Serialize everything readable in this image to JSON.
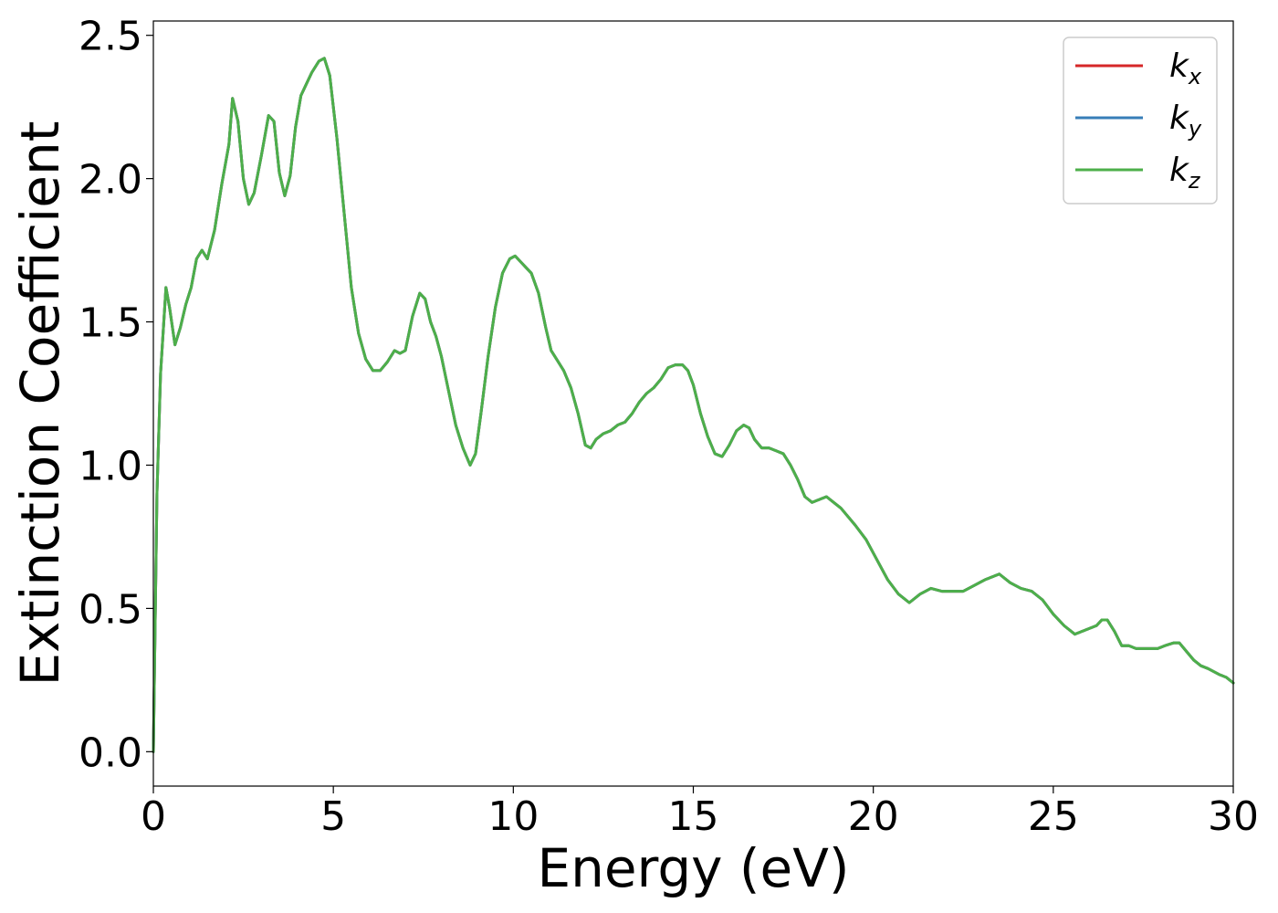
{
  "chart_data": {
    "type": "line",
    "xlabel": "Energy (eV)",
    "ylabel": "Extinction Coefficient",
    "xlim": [
      0,
      30
    ],
    "ylim": [
      -0.12,
      2.55
    ],
    "xticks": [
      "0",
      "5",
      "10",
      "15",
      "20",
      "25",
      "30"
    ],
    "yticks": [
      "0.0",
      "0.5",
      "1.0",
      "1.5",
      "2.0",
      "2.5"
    ],
    "grid": false,
    "legend_position": "top-right",
    "x": [
      0.0,
      0.1,
      0.2,
      0.35,
      0.45,
      0.6,
      0.75,
      0.9,
      1.05,
      1.2,
      1.35,
      1.5,
      1.7,
      1.9,
      2.1,
      2.2,
      2.35,
      2.5,
      2.65,
      2.8,
      3.0,
      3.2,
      3.35,
      3.5,
      3.65,
      3.8,
      3.95,
      4.1,
      4.25,
      4.4,
      4.6,
      4.75,
      4.9,
      5.1,
      5.3,
      5.5,
      5.7,
      5.9,
      6.1,
      6.3,
      6.5,
      6.7,
      6.85,
      7.0,
      7.2,
      7.4,
      7.55,
      7.7,
      7.85,
      8.0,
      8.2,
      8.4,
      8.6,
      8.8,
      8.95,
      9.1,
      9.3,
      9.5,
      9.7,
      9.9,
      10.05,
      10.2,
      10.35,
      10.5,
      10.7,
      10.9,
      11.05,
      11.2,
      11.4,
      11.6,
      11.8,
      12.0,
      12.15,
      12.3,
      12.5,
      12.7,
      12.9,
      13.1,
      13.3,
      13.5,
      13.7,
      13.9,
      14.1,
      14.3,
      14.5,
      14.7,
      14.85,
      15.0,
      15.2,
      15.4,
      15.6,
      15.8,
      16.0,
      16.2,
      16.4,
      16.55,
      16.7,
      16.9,
      17.1,
      17.3,
      17.5,
      17.7,
      17.9,
      18.1,
      18.3,
      18.5,
      18.7,
      18.9,
      19.1,
      19.3,
      19.5,
      19.8,
      20.1,
      20.4,
      20.7,
      21.0,
      21.1,
      21.3,
      21.6,
      21.9,
      22.2,
      22.5,
      22.8,
      23.1,
      23.5,
      23.8,
      24.1,
      24.4,
      24.7,
      25.0,
      25.3,
      25.6,
      25.8,
      26.0,
      26.2,
      26.35,
      26.5,
      26.7,
      26.9,
      27.1,
      27.3,
      27.6,
      27.9,
      28.1,
      28.35,
      28.5,
      28.7,
      28.9,
      29.1,
      29.3,
      29.6,
      29.8,
      30.0
    ],
    "series": [
      {
        "name": "k_x",
        "color": "#d62728",
        "values": [
          0.0,
          0.9,
          1.32,
          1.62,
          1.55,
          1.42,
          1.48,
          1.56,
          1.62,
          1.72,
          1.75,
          1.72,
          1.82,
          1.98,
          2.12,
          2.28,
          2.2,
          2.0,
          1.91,
          1.95,
          2.08,
          2.22,
          2.2,
          2.02,
          1.94,
          2.01,
          2.18,
          2.29,
          2.33,
          2.37,
          2.41,
          2.42,
          2.36,
          2.14,
          1.88,
          1.62,
          1.46,
          1.37,
          1.33,
          1.33,
          1.36,
          1.4,
          1.39,
          1.4,
          1.52,
          1.6,
          1.58,
          1.5,
          1.45,
          1.38,
          1.26,
          1.14,
          1.06,
          1.0,
          1.04,
          1.18,
          1.38,
          1.55,
          1.67,
          1.72,
          1.73,
          1.71,
          1.69,
          1.67,
          1.6,
          1.48,
          1.4,
          1.37,
          1.33,
          1.27,
          1.18,
          1.07,
          1.06,
          1.09,
          1.11,
          1.12,
          1.14,
          1.15,
          1.18,
          1.22,
          1.25,
          1.27,
          1.3,
          1.34,
          1.35,
          1.35,
          1.33,
          1.28,
          1.18,
          1.1,
          1.04,
          1.03,
          1.07,
          1.12,
          1.14,
          1.13,
          1.09,
          1.06,
          1.06,
          1.05,
          1.04,
          1.0,
          0.95,
          0.89,
          0.87,
          0.88,
          0.89,
          0.87,
          0.85,
          0.82,
          0.79,
          0.74,
          0.67,
          0.6,
          0.55,
          0.52,
          0.53,
          0.55,
          0.57,
          0.56,
          0.56,
          0.56,
          0.58,
          0.6,
          0.62,
          0.59,
          0.57,
          0.56,
          0.53,
          0.48,
          0.44,
          0.41,
          0.42,
          0.43,
          0.44,
          0.46,
          0.46,
          0.42,
          0.37,
          0.37,
          0.36,
          0.36,
          0.36,
          0.37,
          0.38,
          0.38,
          0.35,
          0.32,
          0.3,
          0.29,
          0.27,
          0.26,
          0.24
        ]
      },
      {
        "name": "k_y",
        "color": "#377eb8",
        "values": [
          0.0,
          0.9,
          1.32,
          1.62,
          1.55,
          1.42,
          1.48,
          1.56,
          1.62,
          1.72,
          1.75,
          1.72,
          1.82,
          1.98,
          2.12,
          2.28,
          2.2,
          2.0,
          1.91,
          1.95,
          2.08,
          2.22,
          2.2,
          2.02,
          1.94,
          2.01,
          2.18,
          2.29,
          2.33,
          2.37,
          2.41,
          2.42,
          2.36,
          2.14,
          1.88,
          1.62,
          1.46,
          1.37,
          1.33,
          1.33,
          1.36,
          1.4,
          1.39,
          1.4,
          1.52,
          1.6,
          1.58,
          1.5,
          1.45,
          1.38,
          1.26,
          1.14,
          1.06,
          1.0,
          1.04,
          1.18,
          1.38,
          1.55,
          1.67,
          1.72,
          1.73,
          1.71,
          1.69,
          1.67,
          1.6,
          1.48,
          1.4,
          1.37,
          1.33,
          1.27,
          1.18,
          1.07,
          1.06,
          1.09,
          1.11,
          1.12,
          1.14,
          1.15,
          1.18,
          1.22,
          1.25,
          1.27,
          1.3,
          1.34,
          1.35,
          1.35,
          1.33,
          1.28,
          1.18,
          1.1,
          1.04,
          1.03,
          1.07,
          1.12,
          1.14,
          1.13,
          1.09,
          1.06,
          1.06,
          1.05,
          1.04,
          1.0,
          0.95,
          0.89,
          0.87,
          0.88,
          0.89,
          0.87,
          0.85,
          0.82,
          0.79,
          0.74,
          0.67,
          0.6,
          0.55,
          0.52,
          0.53,
          0.55,
          0.57,
          0.56,
          0.56,
          0.56,
          0.58,
          0.6,
          0.62,
          0.59,
          0.57,
          0.56,
          0.53,
          0.48,
          0.44,
          0.41,
          0.42,
          0.43,
          0.44,
          0.46,
          0.46,
          0.42,
          0.37,
          0.37,
          0.36,
          0.36,
          0.36,
          0.37,
          0.38,
          0.38,
          0.35,
          0.32,
          0.3,
          0.29,
          0.27,
          0.26,
          0.24
        ]
      },
      {
        "name": "k_z",
        "color": "#4daf4a",
        "values": [
          0.0,
          0.9,
          1.32,
          1.62,
          1.55,
          1.42,
          1.48,
          1.56,
          1.62,
          1.72,
          1.75,
          1.72,
          1.82,
          1.98,
          2.12,
          2.28,
          2.2,
          2.0,
          1.91,
          1.95,
          2.08,
          2.22,
          2.2,
          2.02,
          1.94,
          2.01,
          2.18,
          2.29,
          2.33,
          2.37,
          2.41,
          2.42,
          2.36,
          2.14,
          1.88,
          1.62,
          1.46,
          1.37,
          1.33,
          1.33,
          1.36,
          1.4,
          1.39,
          1.4,
          1.52,
          1.6,
          1.58,
          1.5,
          1.45,
          1.38,
          1.26,
          1.14,
          1.06,
          1.0,
          1.04,
          1.18,
          1.38,
          1.55,
          1.67,
          1.72,
          1.73,
          1.71,
          1.69,
          1.67,
          1.6,
          1.48,
          1.4,
          1.37,
          1.33,
          1.27,
          1.18,
          1.07,
          1.06,
          1.09,
          1.11,
          1.12,
          1.14,
          1.15,
          1.18,
          1.22,
          1.25,
          1.27,
          1.3,
          1.34,
          1.35,
          1.35,
          1.33,
          1.28,
          1.18,
          1.1,
          1.04,
          1.03,
          1.07,
          1.12,
          1.14,
          1.13,
          1.09,
          1.06,
          1.06,
          1.05,
          1.04,
          1.0,
          0.95,
          0.89,
          0.87,
          0.88,
          0.89,
          0.87,
          0.85,
          0.82,
          0.79,
          0.74,
          0.67,
          0.6,
          0.55,
          0.52,
          0.53,
          0.55,
          0.57,
          0.56,
          0.56,
          0.56,
          0.58,
          0.6,
          0.62,
          0.59,
          0.57,
          0.56,
          0.53,
          0.48,
          0.44,
          0.41,
          0.42,
          0.43,
          0.44,
          0.46,
          0.46,
          0.42,
          0.37,
          0.37,
          0.36,
          0.36,
          0.36,
          0.37,
          0.38,
          0.38,
          0.35,
          0.32,
          0.3,
          0.29,
          0.27,
          0.26,
          0.24
        ]
      }
    ],
    "legend": [
      {
        "main": "k",
        "sub": "x",
        "color": "#d62728"
      },
      {
        "main": "k",
        "sub": "y",
        "color": "#377eb8"
      },
      {
        "main": "k",
        "sub": "z",
        "color": "#4daf4a"
      }
    ]
  }
}
